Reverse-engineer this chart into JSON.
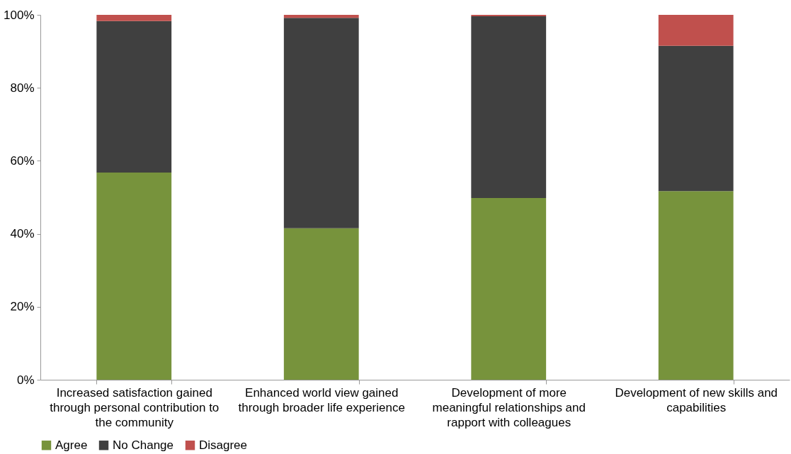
{
  "chart_data": {
    "type": "bar",
    "stacked": true,
    "categories": [
      "Increased satisfaction gained through personal contribution to the community",
      "Enhanced world view gained through broader life experience",
      "Development of more meaningful relationships and rapport with colleagues",
      "Development of new skills and capabilities"
    ],
    "series": [
      {
        "name": "Agree",
        "color": "#77933c",
        "values": [
          56.8,
          41.5,
          49.8,
          51.7
        ]
      },
      {
        "name": "No Change",
        "color": "#404040",
        "values": [
          41.5,
          57.7,
          49.8,
          39.8
        ]
      },
      {
        "name": "Disagree",
        "color": "#c0504d",
        "values": [
          1.7,
          0.8,
          0.4,
          8.5
        ]
      }
    ],
    "ylim": [
      0,
      100
    ],
    "yticks": [
      {
        "value": 0,
        "label": "0%"
      },
      {
        "value": 20,
        "label": "20%"
      },
      {
        "value": 40,
        "label": "40%"
      },
      {
        "value": 60,
        "label": "60%"
      },
      {
        "value": 80,
        "label": "80%"
      },
      {
        "value": 100,
        "label": "100%"
      }
    ],
    "grid": false,
    "legend": "bottom"
  }
}
